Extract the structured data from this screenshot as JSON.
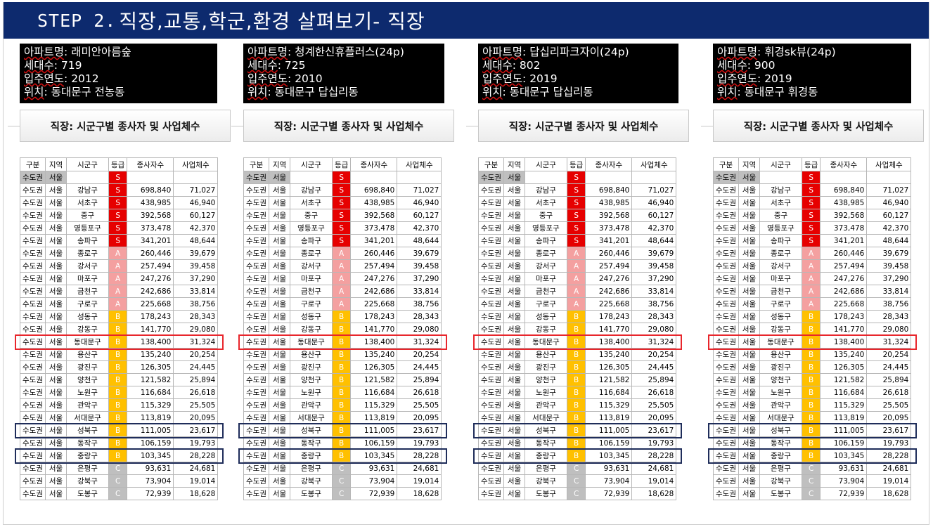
{
  "title": {
    "step": "STEP 2.",
    "text": "직장,교통,학군,환경 살펴보기- 직장"
  },
  "panels": [
    {
      "apt_label": "아파트명",
      "apt_value": ": 래미안아름숲",
      "units_label": "세대수",
      "units_value": ": 719",
      "year_label": "입주연도",
      "year_value": ": 2012",
      "loc_label": "위치",
      "loc_value": ": 동대문구 전농동"
    },
    {
      "apt_label": "아파트명",
      "apt_value": ": 청계한신휴플러스(24p)",
      "units_label": "세대수",
      "units_value": ": 725",
      "year_label": "입주연도",
      "year_value": ": 2010",
      "loc_label": "위치",
      "loc_value": ": 동대문구 답십리동"
    },
    {
      "apt_label": "아파트명",
      "apt_value": ": 답십리파크자이(24p)",
      "units_label": "세대수",
      "units_value": ": 802",
      "year_label": "입주연도",
      "year_value": ": 2019",
      "loc_label": "위치",
      "loc_value": ": 동대문구 답십리동"
    },
    {
      "apt_label": "아파트명",
      "apt_value": ": 휘경sk뷰(24p)",
      "units_label": "세대수",
      "units_value": ": 900",
      "year_label": "입주연도",
      "year_value": ": 2019",
      "loc_label": "위치",
      "loc_value": ": 동대문구 휘경동"
    }
  ],
  "sheet_title": "직장: 시군구별 종사자 및 사업체수",
  "table": {
    "headers": [
      "구분",
      "지역",
      "시군구",
      "등급",
      "종사자수",
      "사업체수"
    ],
    "region_row": {
      "area": "수도권",
      "city": "서울",
      "grade": "S"
    },
    "rows": [
      [
        "수도권",
        "서울",
        "강남구",
        "S",
        "698,840",
        "71,027"
      ],
      [
        "수도권",
        "서울",
        "서초구",
        "S",
        "438,985",
        "46,940"
      ],
      [
        "수도권",
        "서울",
        "중구",
        "S",
        "392,568",
        "60,127"
      ],
      [
        "수도권",
        "서울",
        "영등포구",
        "S",
        "373,478",
        "42,370"
      ],
      [
        "수도권",
        "서울",
        "송파구",
        "S",
        "341,201",
        "48,644"
      ],
      [
        "수도권",
        "서울",
        "종로구",
        "A",
        "260,446",
        "39,679"
      ],
      [
        "수도권",
        "서울",
        "강서구",
        "A",
        "257,494",
        "39,458"
      ],
      [
        "수도권",
        "서울",
        "마포구",
        "A",
        "247,276",
        "37,290"
      ],
      [
        "수도권",
        "서울",
        "금천구",
        "A",
        "242,686",
        "33,814"
      ],
      [
        "수도권",
        "서울",
        "구로구",
        "A",
        "225,668",
        "38,756"
      ],
      [
        "수도권",
        "서울",
        "성동구",
        "B",
        "178,243",
        "28,343"
      ],
      [
        "수도권",
        "서울",
        "강동구",
        "B",
        "141,770",
        "29,080"
      ],
      [
        "수도권",
        "서울",
        "동대문구",
        "B",
        "138,400",
        "31,324"
      ],
      [
        "수도권",
        "서울",
        "용산구",
        "B",
        "135,240",
        "20,254"
      ],
      [
        "수도권",
        "서울",
        "광진구",
        "B",
        "126,305",
        "24,445"
      ],
      [
        "수도권",
        "서울",
        "양천구",
        "B",
        "121,582",
        "25,894"
      ],
      [
        "수도권",
        "서울",
        "노원구",
        "B",
        "116,684",
        "26,618"
      ],
      [
        "수도권",
        "서울",
        "관악구",
        "B",
        "115,329",
        "25,505"
      ],
      [
        "수도권",
        "서울",
        "서대문구",
        "B",
        "113,819",
        "20,095"
      ],
      [
        "수도권",
        "서울",
        "성북구",
        "B",
        "111,005",
        "23,617"
      ],
      [
        "수도권",
        "서울",
        "동작구",
        "B",
        "106,159",
        "19,793"
      ],
      [
        "수도권",
        "서울",
        "중랑구",
        "B",
        "103,345",
        "28,228"
      ],
      [
        "수도권",
        "서울",
        "은평구",
        "C",
        "93,631",
        "24,681"
      ],
      [
        "수도권",
        "서울",
        "강북구",
        "C",
        "73,904",
        "19,014"
      ],
      [
        "수도권",
        "서울",
        "도봉구",
        "C",
        "72,939",
        "18,628"
      ]
    ]
  },
  "highlight_red_row": 12,
  "highlight_navy_rows": [
    19,
    21
  ],
  "colors": {
    "title_bg": "#0d2a6e",
    "grade_S": "#e60000",
    "grade_A": "#f4a0a0",
    "grade_B": "#ffc000",
    "grade_C": "#bfbfbf"
  }
}
